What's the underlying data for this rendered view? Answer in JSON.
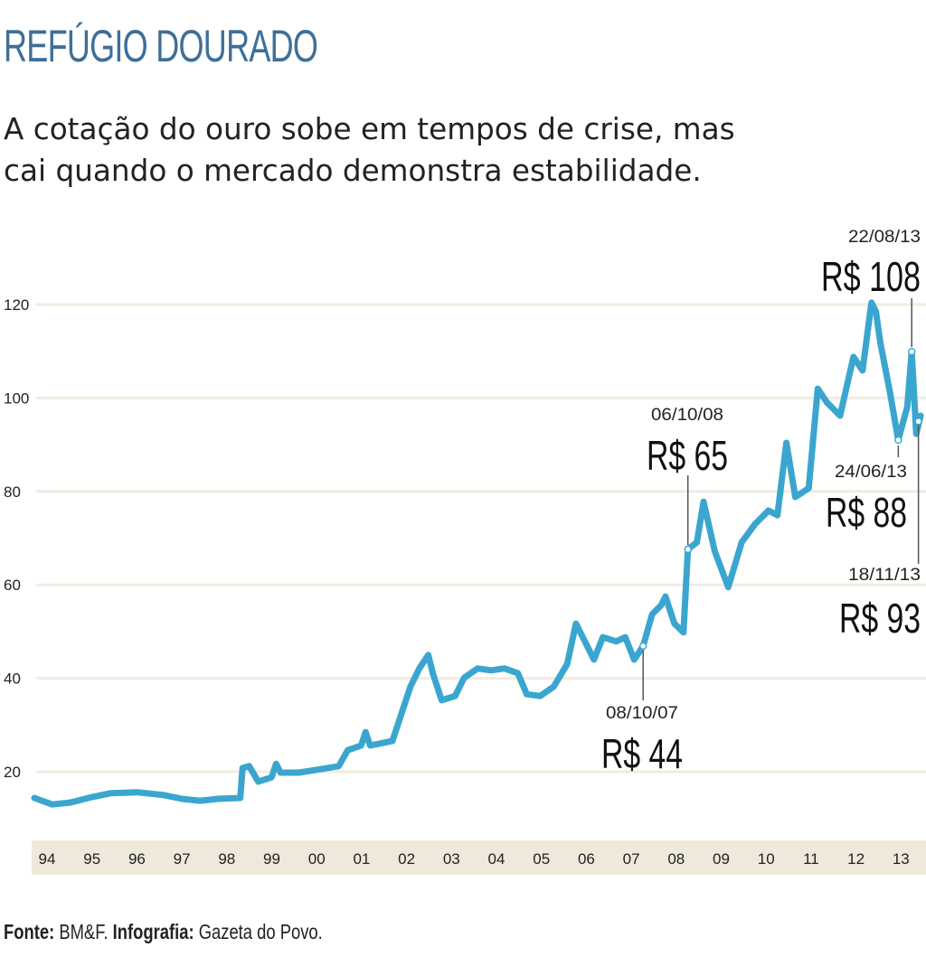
{
  "header": {
    "title": "REFÚGIO DOURADO",
    "subtitle_line1": "A cotação do ouro sobe em tempos de crise, mas",
    "subtitle_line2": "cai quando o mercado demonstra estabilidade."
  },
  "footer": {
    "source_label": "Fonte:",
    "source": " BM&F. ",
    "credit_label": "Infografia:",
    "credit": " Gazeta do Povo."
  },
  "colors": {
    "line": "#3aa6cf",
    "grid": "#f1ece1",
    "axis_band": "#efe9dc",
    "title": "#3f6f97"
  },
  "chart_data": {
    "type": "line",
    "title": "REFÚGIO DOURADO",
    "xlabel": "",
    "ylabel": "",
    "xlim": [
      1994,
      2013.9
    ],
    "ylim": [
      10,
      125
    ],
    "grid": true,
    "yticks": [
      20,
      40,
      60,
      80,
      100,
      120
    ],
    "xtick_labels": [
      "94",
      "95",
      "96",
      "97",
      "98",
      "99",
      "00",
      "01",
      "02",
      "03",
      "04",
      "05",
      "06",
      "07",
      "08",
      "09",
      "10",
      "11",
      "12",
      "13"
    ],
    "series": [
      {
        "x": [
          1994.0,
          1994.4,
          1994.8,
          1995.3,
          1995.7,
          1996.3,
          1996.9,
          1997.3,
          1997.7,
          1998.1,
          1998.6,
          1998.65,
          1998.8,
          1999.0,
          1999.3,
          1999.4,
          1999.5,
          1999.9,
          2000.3,
          2000.8,
          2001.0,
          2001.3,
          2001.4,
          2001.5,
          2001.8,
          2002.0,
          2002.2,
          2002.4,
          2002.6,
          2002.8,
          2002.9,
          2003.1,
          2003.4,
          2003.6,
          2003.9,
          2004.2,
          2004.5,
          2004.8,
          2005.0,
          2005.3,
          2005.6,
          2005.9,
          2006.1,
          2006.3,
          2006.5,
          2006.7,
          2007.0,
          2007.2,
          2007.4,
          2007.6,
          2007.8,
          2008.0,
          2008.1,
          2008.3,
          2008.5,
          2008.6,
          2008.8,
          2008.95,
          2009.2,
          2009.5,
          2009.8,
          2010.1,
          2010.4,
          2010.6,
          2010.8,
          2011.0,
          2011.3,
          2011.5,
          2011.7,
          2012.0,
          2012.3,
          2012.5,
          2012.7,
          2012.8,
          2012.9,
          2013.1,
          2013.3,
          2013.5,
          2013.6,
          2013.7,
          2013.8
        ],
        "values": [
          14.4,
          13.0,
          13.4,
          14.6,
          15.4,
          15.6,
          15.0,
          14.2,
          13.8,
          14.2,
          14.4,
          20.8,
          21.2,
          17.9,
          18.8,
          21.7,
          19.8,
          19.8,
          20.4,
          21.2,
          24.6,
          25.6,
          28.5,
          25.6,
          26.2,
          26.6,
          32.4,
          38.2,
          42.1,
          45.0,
          41.1,
          35.3,
          36.2,
          40.1,
          42.1,
          41.7,
          42.1,
          41.1,
          36.6,
          36.2,
          38.2,
          43.0,
          51.7,
          47.9,
          44.0,
          48.8,
          47.9,
          48.8,
          44.0,
          46.9,
          53.7,
          55.6,
          57.5,
          51.7,
          49.8,
          67.6,
          69.1,
          77.8,
          67.2,
          59.5,
          69.1,
          73.0,
          75.9,
          74.9,
          90.4,
          78.8,
          80.7,
          102.0,
          99.1,
          96.2,
          108.8,
          105.9,
          120.4,
          118.5,
          111.7,
          102.0,
          91.0,
          98.1,
          109.9,
          92.3,
          96.2
        ]
      }
    ],
    "annotations": [
      {
        "date": "08/10/07",
        "label": "R$ 44",
        "x": 2007.6,
        "y": 46.9
      },
      {
        "date": "06/10/08",
        "label": "R$ 65",
        "x": 2008.6,
        "y": 67.6
      },
      {
        "date": "22/08/13",
        "label": "R$ 108",
        "x": 2013.6,
        "y": 109.9
      },
      {
        "date": "24/06/13",
        "label": "R$ 88",
        "x": 2013.3,
        "y": 91.0
      },
      {
        "date": "18/11/13",
        "label": "R$ 93",
        "x": 2013.75,
        "y": 95.0
      }
    ]
  }
}
